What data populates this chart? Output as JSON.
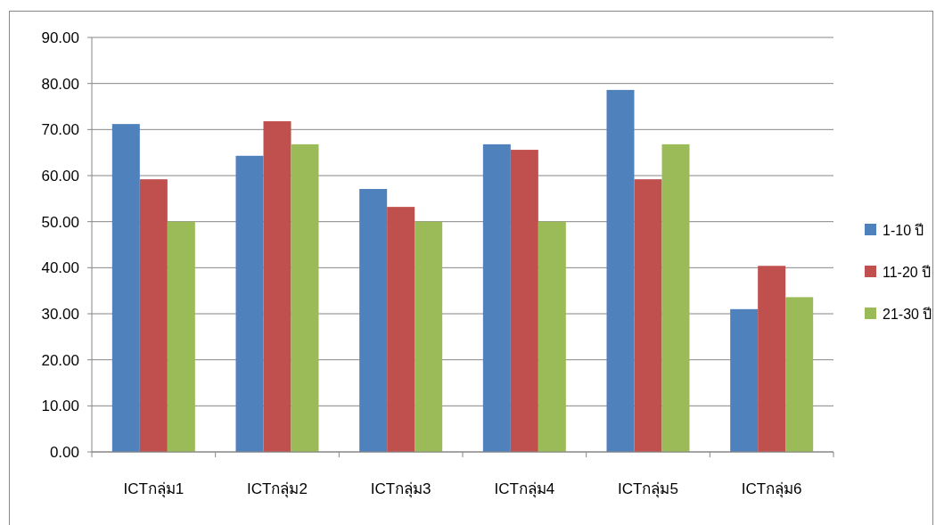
{
  "chart_data": {
    "type": "bar",
    "categories": [
      "ICTกลุ่ม1",
      "ICTกลุ่ม2",
      "ICTกลุ่ม3",
      "ICTกลุ่ม4",
      "ICTกลุ่ม5",
      "ICTกลุ่ม6"
    ],
    "series": [
      {
        "name": "1-10 ปี",
        "color": "#4f81bd",
        "values": [
          71.2,
          64.3,
          57.1,
          66.8,
          78.6,
          31.0
        ]
      },
      {
        "name": "11-20 ปี",
        "color": "#c0504d",
        "values": [
          59.2,
          71.8,
          53.2,
          65.6,
          59.2,
          40.4
        ]
      },
      {
        "name": "21-30 ปี",
        "color": "#9bbb59",
        "values": [
          50.0,
          66.8,
          50.0,
          50.0,
          66.8,
          33.6
        ]
      }
    ],
    "ylim": [
      0,
      90
    ],
    "yticks": [
      {
        "value": 0,
        "label": "0.00"
      },
      {
        "value": 10,
        "label": "10.00"
      },
      {
        "value": 20,
        "label": "20.00"
      },
      {
        "value": 30,
        "label": "30.00"
      },
      {
        "value": 40,
        "label": "40.00"
      },
      {
        "value": 50,
        "label": "50.00"
      },
      {
        "value": 60,
        "label": "60.00"
      },
      {
        "value": 70,
        "label": "70.00"
      },
      {
        "value": 80,
        "label": "80.00"
      },
      {
        "value": 90,
        "label": "90.00"
      }
    ],
    "grid": "y",
    "legend": "right"
  }
}
